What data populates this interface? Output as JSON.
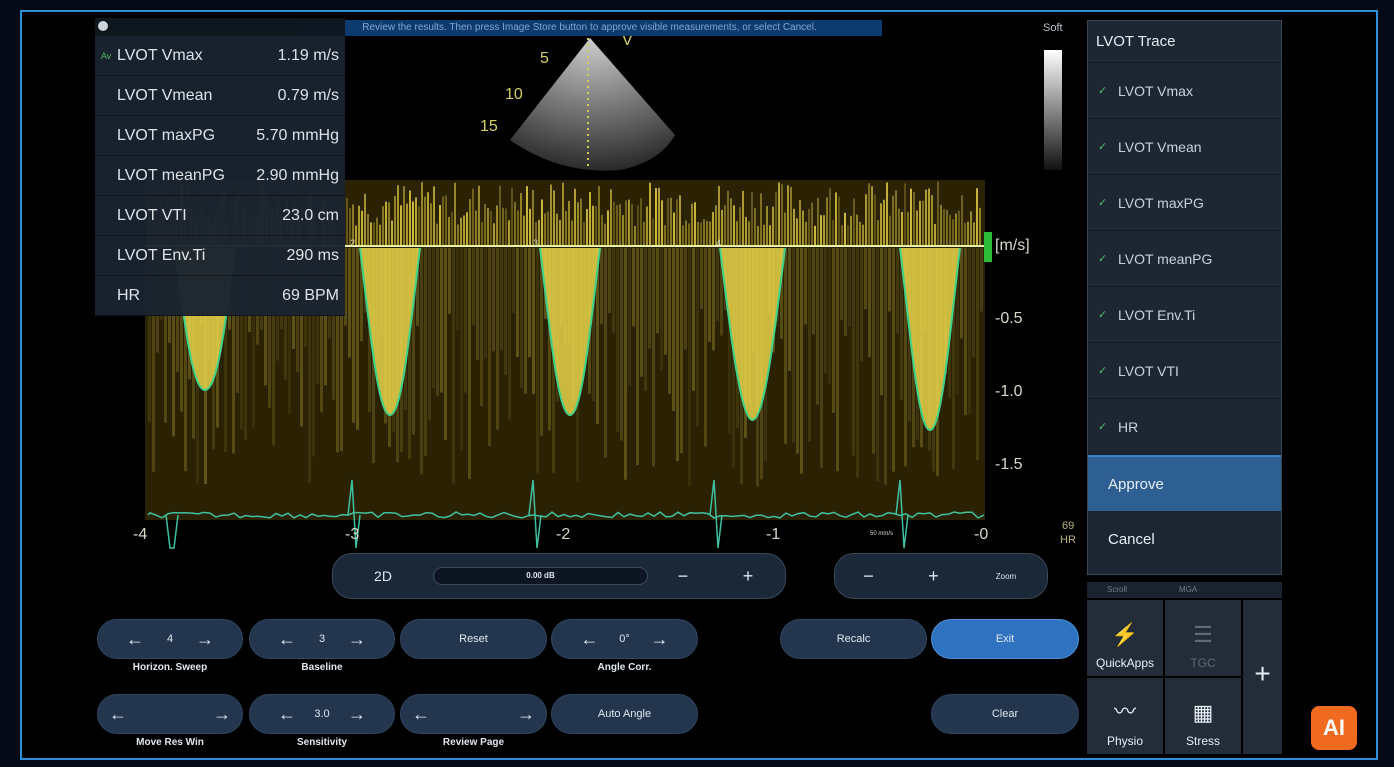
{
  "banner": "Review the results. Then press Image Store button to approve visible measurements, or select Cancel.",
  "measurements": [
    {
      "indicator": "Av",
      "name": "LVOT Vmax",
      "value": "1.19 m/s"
    },
    {
      "indicator": "",
      "name": "LVOT Vmean",
      "value": "0.79 m/s"
    },
    {
      "indicator": "",
      "name": "LVOT maxPG",
      "value": "5.70 mmHg"
    },
    {
      "indicator": "",
      "name": "LVOT meanPG",
      "value": "2.90 mmHg"
    },
    {
      "indicator": "",
      "name": "LVOT VTI",
      "value": "23.0 cm"
    },
    {
      "indicator": "",
      "name": "LVOT Env.Ti",
      "value": "290 ms"
    },
    {
      "indicator": "",
      "name": "HR",
      "value": "69 BPM"
    }
  ],
  "image_depth_labels": [
    "5",
    "10",
    "15"
  ],
  "image_marker": "V",
  "gray_bar_label": "Soft",
  "velocity_unit": "[m/s]",
  "velocity_ticks": [
    "-0.5",
    "-1.0",
    "-1.5"
  ],
  "time_axis": [
    "-4",
    "-3",
    "-2",
    "-1",
    "-0"
  ],
  "beat_marks": [
    "2",
    "3",
    "4"
  ],
  "sweep_speed": "50 mm/s",
  "hr_display": {
    "value": "69",
    "label": "HR"
  },
  "right_panel": {
    "title": "LVOT Trace",
    "items": [
      "LVOT Vmax",
      "LVOT Vmean",
      "LVOT maxPG",
      "LVOT meanPG",
      "LVOT Env.Ti",
      "LVOT VTI",
      "HR"
    ],
    "approve": "Approve",
    "cancel": "Cancel"
  },
  "icon_panel": {
    "headers": [
      "Scroll",
      "MGA"
    ],
    "quickapps": "QuickApps",
    "tgc": "TGC",
    "physio": "Physio",
    "stress": "Stress",
    "plus": "+"
  },
  "gain_bar": {
    "mode": "2D",
    "gain": "0.00 dB",
    "minus": "−",
    "plus": "+"
  },
  "zoom_bar": {
    "minus": "−",
    "plus": "+",
    "label": "Zoom"
  },
  "controls": {
    "horizon_sweep": {
      "value": "4",
      "label": "Horizon. Sweep"
    },
    "baseline": {
      "value": "3",
      "label": "Baseline"
    },
    "reset": "Reset",
    "angle_corr": {
      "value": "0°",
      "label": "Angle Corr."
    },
    "recalc": "Recalc",
    "exit": "Exit",
    "move_res_win": "Move Res Win",
    "sensitivity": {
      "value": "3.0",
      "label": "Sensitivity"
    },
    "review_page": "Review Page",
    "auto_angle": "Auto Angle",
    "clear": "Clear"
  },
  "arrows": {
    "left": "←",
    "right": "→"
  },
  "badge": "AI",
  "colors": {
    "accent": "#2d8fd6",
    "trace": "#3fd28a",
    "spectral": "#e8d44a",
    "approve": "#2d5f93",
    "exit": "#2f73c0"
  }
}
